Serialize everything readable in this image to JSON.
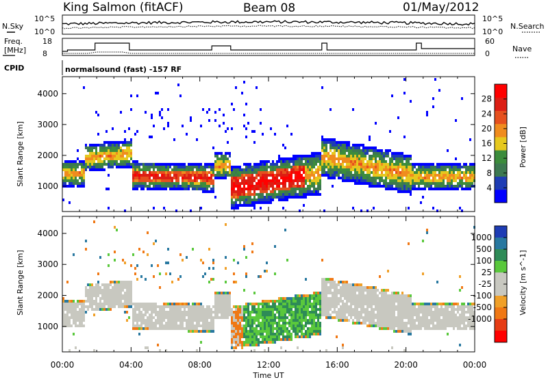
{
  "header": {
    "station": "King Salmon (fitACF)",
    "beam": "Beam 08",
    "date": "01/May/2012"
  },
  "noise_panel": {
    "left_label": "N.Sky",
    "right_label": "N.Search",
    "left_ticks": [
      "10^5",
      "10^0"
    ],
    "right_ticks": [
      "10^5",
      "10^0"
    ]
  },
  "freq_panel": {
    "left_label_1": "Freq.",
    "left_label_2": "[MHz]",
    "right_label": "Nave",
    "left_ticks": [
      "18",
      "8"
    ],
    "right_ticks": [
      "60",
      "0"
    ]
  },
  "cpid": {
    "label": "CPID",
    "program": "normalsound (fast) -157 RF"
  },
  "colors": {
    "power_scale": [
      "#0000ff",
      "#1e3cb4",
      "#3c7850",
      "#3c8c3c",
      "#e6c81e",
      "#f08c1e",
      "#e6501e",
      "#dc1e14",
      "#ff0000"
    ],
    "velocity_scale": [
      "#1e3cb4",
      "#2878a0",
      "#2e8b57",
      "#5ac83c",
      "#c8c8c0",
      "#c8c8c0",
      "#f0a028",
      "#f07814",
      "#e63c14",
      "#ff0000"
    ]
  },
  "chart_data": [
    {
      "type": "heatmap",
      "name": "power",
      "xlabel": "Time UT",
      "ylabel": "Slant Range [km]",
      "x_ticks": [
        "00:00",
        "04:00",
        "08:00",
        "12:00",
        "16:00",
        "20:00",
        "00:00"
      ],
      "xlim": [
        0,
        24
      ],
      "y_ticks": [
        1000,
        2000,
        3000,
        4000
      ],
      "ylim": [
        180,
        4550
      ],
      "colorbar": {
        "label": "Power [dB]",
        "ticks": [
          4,
          8,
          12,
          16,
          20,
          24,
          28
        ],
        "range": [
          0,
          32
        ]
      }
    },
    {
      "type": "heatmap",
      "name": "velocity",
      "xlabel": "Time UT",
      "ylabel": "Slant Range [km]",
      "x_ticks": [
        "00:00",
        "04:00",
        "08:00",
        "12:00",
        "16:00",
        "20:00",
        "00:00"
      ],
      "xlim": [
        0,
        24
      ],
      "y_ticks": [
        1000,
        2000,
        3000,
        4000
      ],
      "ylim": [
        180,
        4550
      ],
      "colorbar": {
        "label": "Velocity [m s^-1]",
        "ticks": [
          "1000",
          "500",
          "100",
          "25",
          "-25",
          "-100",
          "-500",
          "-1000"
        ]
      }
    }
  ]
}
